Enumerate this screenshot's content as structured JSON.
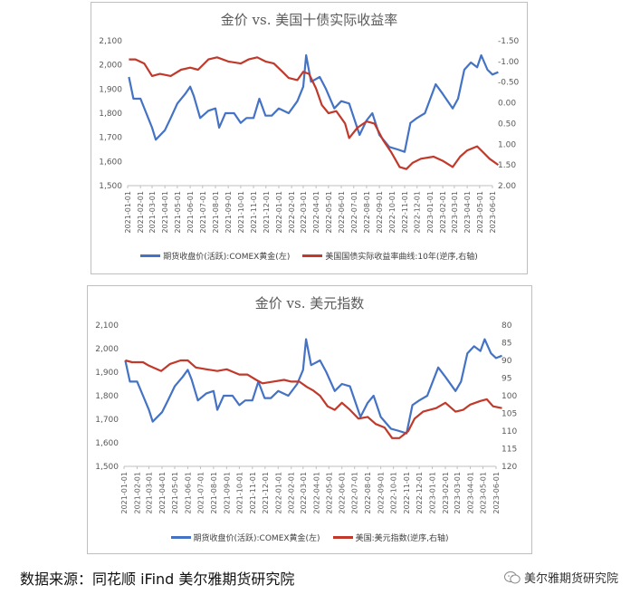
{
  "colors": {
    "gold": "#4472c4",
    "right": "#c0392b",
    "axis_text": "#595959",
    "grid": "#d9d9d9"
  },
  "dates": [
    "2021-01-01",
    "2021-02-01",
    "2021-03-01",
    "2021-04-01",
    "2021-05-01",
    "2021-06-01",
    "2021-07-01",
    "2021-08-01",
    "2021-09-01",
    "2021-10-01",
    "2021-11-01",
    "2021-12-01",
    "2022-01-01",
    "2022-02-01",
    "2022-03-01",
    "2022-04-01",
    "2022-05-01",
    "2022-06-01",
    "2022-07-01",
    "2022-08-01",
    "2022-09-01",
    "2022-10-01",
    "2022-11-01",
    "2022-12-01",
    "2023-01-01",
    "2023-02-01",
    "2023-03-01",
    "2023-04-01",
    "2023-05-01",
    "2023-06-01"
  ],
  "chart_data": [
    {
      "type": "line",
      "title": "金价 vs. 美国十债实际收益率",
      "x_tick_labels": [
        "2021-01-01",
        "2021-02-01",
        "2021-03-01",
        "2021-04-01",
        "2021-05-01",
        "2021-06-01",
        "2021-07-01",
        "2021-08-01",
        "2021-09-01",
        "2021-10-01",
        "2021-11-01",
        "2021-12-01",
        "2022-01-01",
        "2022-02-01",
        "2022-03-01",
        "2022-04-01",
        "2022-05-01",
        "2022-06-01",
        "2022-07-01",
        "2022-08-01",
        "2022-09-01",
        "2022-10-01",
        "2022-11-01",
        "2022-12-01",
        "2023-01-01",
        "2023-02-01",
        "2023-03-01",
        "2023-04-01",
        "2023-05-01",
        "2023-06-01"
      ],
      "y_left_ticks": [
        "2,100",
        "2,000",
        "1,900",
        "1,800",
        "1,700",
        "1,600",
        "1,500"
      ],
      "y_right_ticks": [
        "-1.50",
        "-1.00",
        "-0.50",
        "0.00",
        "0.50",
        "1.00",
        "1.50",
        "2.00"
      ],
      "ylim_left": [
        1500,
        2100
      ],
      "ylim_right": [
        -1.5,
        2.0
      ],
      "right_inverted": true,
      "series": [
        {
          "name": "期货收盘价(活跃):COMEX黄金(左)",
          "axis": "left",
          "x": [
            "2021-01-04",
            "2021-01-15",
            "2021-02-01",
            "2021-02-15",
            "2021-03-01",
            "2021-03-10",
            "2021-04-01",
            "2021-04-15",
            "2021-05-01",
            "2021-05-20",
            "2021-06-01",
            "2021-06-10",
            "2021-06-25",
            "2021-07-15",
            "2021-08-01",
            "2021-08-10",
            "2021-08-25",
            "2021-09-15",
            "2021-10-01",
            "2021-10-15",
            "2021-11-01",
            "2021-11-15",
            "2021-11-30",
            "2021-12-15",
            "2022-01-01",
            "2022-01-25",
            "2022-02-15",
            "2022-03-01",
            "2022-03-08",
            "2022-03-20",
            "2022-04-10",
            "2022-04-25",
            "2022-05-15",
            "2022-06-01",
            "2022-06-20",
            "2022-07-15",
            "2022-08-01",
            "2022-08-15",
            "2022-09-01",
            "2022-09-25",
            "2022-10-15",
            "2022-11-01",
            "2022-11-15",
            "2022-12-01",
            "2022-12-20",
            "2023-01-15",
            "2023-02-01",
            "2023-02-25",
            "2023-03-10",
            "2023-03-25",
            "2023-04-10",
            "2023-04-25",
            "2023-05-05",
            "2023-05-20",
            "2023-06-01",
            "2023-06-15"
          ],
          "values": [
            1950,
            1860,
            1860,
            1800,
            1740,
            1690,
            1730,
            1780,
            1840,
            1880,
            1910,
            1870,
            1780,
            1810,
            1820,
            1740,
            1800,
            1800,
            1760,
            1780,
            1780,
            1860,
            1790,
            1790,
            1820,
            1800,
            1850,
            1910,
            2040,
            1930,
            1950,
            1900,
            1820,
            1850,
            1840,
            1710,
            1770,
            1800,
            1710,
            1660,
            1650,
            1640,
            1760,
            1780,
            1800,
            1920,
            1880,
            1820,
            1860,
            1980,
            2010,
            1990,
            2040,
            1980,
            1960,
            1970
          ]
        },
        {
          "name": "美国国债实际收益率曲线:10年(逆序,右轴)",
          "axis": "right",
          "x": [
            "2021-01-04",
            "2021-01-20",
            "2021-02-10",
            "2021-03-01",
            "2021-03-20",
            "2021-04-15",
            "2021-05-10",
            "2021-06-01",
            "2021-06-20",
            "2021-07-15",
            "2021-08-05",
            "2021-09-01",
            "2021-10-01",
            "2021-10-20",
            "2021-11-10",
            "2021-11-30",
            "2021-12-20",
            "2022-01-10",
            "2022-01-25",
            "2022-02-15",
            "2022-03-01",
            "2022-03-15",
            "2022-04-01",
            "2022-04-15",
            "2022-05-01",
            "2022-05-20",
            "2022-06-10",
            "2022-06-20",
            "2022-07-10",
            "2022-08-01",
            "2022-08-20",
            "2022-09-10",
            "2022-09-30",
            "2022-10-20",
            "2022-11-05",
            "2022-11-20",
            "2022-12-10",
            "2023-01-10",
            "2023-02-01",
            "2023-02-25",
            "2023-03-15",
            "2023-04-01",
            "2023-04-25",
            "2023-05-10",
            "2023-05-25",
            "2023-06-15"
          ],
          "values": [
            -1.05,
            -1.05,
            -0.95,
            -0.65,
            -0.7,
            -0.65,
            -0.8,
            -0.85,
            -0.8,
            -1.05,
            -1.1,
            -1.0,
            -0.95,
            -1.05,
            -1.1,
            -1.0,
            -0.95,
            -0.75,
            -0.6,
            -0.55,
            -0.75,
            -0.7,
            -0.35,
            0.05,
            0.25,
            0.2,
            0.5,
            0.85,
            0.6,
            0.45,
            0.5,
            0.9,
            1.2,
            1.55,
            1.6,
            1.45,
            1.35,
            1.3,
            1.4,
            1.55,
            1.3,
            1.15,
            1.05,
            1.2,
            1.35,
            1.5
          ]
        }
      ]
    },
    {
      "type": "line",
      "title": "金价 vs. 美元指数",
      "x_tick_labels": [
        "2021-01-01",
        "2021-02-01",
        "2021-03-01",
        "2021-04-01",
        "2021-05-01",
        "2021-06-01",
        "2021-07-01",
        "2021-08-01",
        "2021-09-01",
        "2021-10-01",
        "2021-11-01",
        "2021-12-01",
        "2022-01-01",
        "2022-02-01",
        "2022-03-01",
        "2022-04-01",
        "2022-05-01",
        "2022-06-01",
        "2022-07-01",
        "2022-08-01",
        "2022-09-01",
        "2022-10-01",
        "2022-11-01",
        "2022-12-01",
        "2023-01-01",
        "2023-02-01",
        "2023-03-01",
        "2023-04-01",
        "2023-05-01",
        "2023-06-01"
      ],
      "y_left_ticks": [
        "2,100",
        "2,000",
        "1,900",
        "1,800",
        "1,700",
        "1,600",
        "1,500"
      ],
      "y_right_ticks": [
        "80",
        "85",
        "90",
        "95",
        "100",
        "105",
        "110",
        "115",
        "120"
      ],
      "ylim_left": [
        1500,
        2100
      ],
      "ylim_right": [
        80,
        120
      ],
      "right_inverted": true,
      "series": [
        {
          "name": "期货收盘价(活跃):COMEX黄金(左)",
          "axis": "left",
          "x": [
            "2021-01-04",
            "2021-01-15",
            "2021-02-01",
            "2021-02-15",
            "2021-03-01",
            "2021-03-10",
            "2021-04-01",
            "2021-04-15",
            "2021-05-01",
            "2021-05-20",
            "2021-06-01",
            "2021-06-10",
            "2021-06-25",
            "2021-07-15",
            "2021-08-01",
            "2021-08-10",
            "2021-08-25",
            "2021-09-15",
            "2021-10-01",
            "2021-10-15",
            "2021-11-01",
            "2021-11-15",
            "2021-11-30",
            "2021-12-15",
            "2022-01-01",
            "2022-01-25",
            "2022-02-15",
            "2022-03-01",
            "2022-03-08",
            "2022-03-20",
            "2022-04-10",
            "2022-04-25",
            "2022-05-15",
            "2022-06-01",
            "2022-06-20",
            "2022-07-15",
            "2022-08-01",
            "2022-08-15",
            "2022-09-01",
            "2022-09-25",
            "2022-10-15",
            "2022-11-01",
            "2022-11-15",
            "2022-12-01",
            "2022-12-20",
            "2023-01-15",
            "2023-02-01",
            "2023-02-25",
            "2023-03-10",
            "2023-03-25",
            "2023-04-10",
            "2023-04-25",
            "2023-05-05",
            "2023-05-20",
            "2023-06-01",
            "2023-06-15"
          ],
          "values": [
            1950,
            1860,
            1860,
            1800,
            1740,
            1690,
            1730,
            1780,
            1840,
            1880,
            1910,
            1870,
            1780,
            1810,
            1820,
            1740,
            1800,
            1800,
            1760,
            1780,
            1780,
            1860,
            1790,
            1790,
            1820,
            1800,
            1850,
            1910,
            2040,
            1930,
            1950,
            1900,
            1820,
            1850,
            1840,
            1710,
            1770,
            1800,
            1710,
            1660,
            1650,
            1640,
            1760,
            1780,
            1800,
            1920,
            1880,
            1820,
            1860,
            1980,
            2010,
            1990,
            2040,
            1980,
            1960,
            1970
          ]
        },
        {
          "name": "美国:美元指数(逆序,右轴)",
          "axis": "right",
          "x": [
            "2021-01-04",
            "2021-01-20",
            "2021-02-15",
            "2021-03-01",
            "2021-03-30",
            "2021-04-20",
            "2021-05-15",
            "2021-06-01",
            "2021-06-20",
            "2021-07-15",
            "2021-08-10",
            "2021-09-01",
            "2021-10-01",
            "2021-10-20",
            "2021-11-10",
            "2021-11-25",
            "2021-12-20",
            "2022-01-15",
            "2022-02-01",
            "2022-02-20",
            "2022-03-10",
            "2022-03-25",
            "2022-04-10",
            "2022-04-28",
            "2022-05-15",
            "2022-06-01",
            "2022-06-20",
            "2022-07-10",
            "2022-08-01",
            "2022-08-20",
            "2022-09-10",
            "2022-09-28",
            "2022-10-15",
            "2022-11-05",
            "2022-11-20",
            "2022-12-10",
            "2023-01-10",
            "2023-02-01",
            "2023-02-25",
            "2023-03-15",
            "2023-04-01",
            "2023-04-25",
            "2023-05-10",
            "2023-05-25",
            "2023-06-15"
          ],
          "values": [
            90,
            90.5,
            90.5,
            91.5,
            93,
            91,
            90,
            90,
            92,
            92.5,
            93,
            92.5,
            94,
            94,
            95.5,
            96.5,
            96,
            95.5,
            96,
            96,
            97.5,
            98.5,
            100,
            103,
            104,
            102,
            104,
            106.5,
            106,
            108,
            109,
            112,
            112,
            110,
            106.5,
            104.5,
            103.5,
            102,
            104.5,
            104,
            102.5,
            101.5,
            101,
            103,
            103.5
          ]
        }
      ]
    }
  ],
  "footer": {
    "source": "数据来源：同花顺 iFind   美尔雅期货研究院",
    "brand": "美尔雅期货研究院"
  }
}
